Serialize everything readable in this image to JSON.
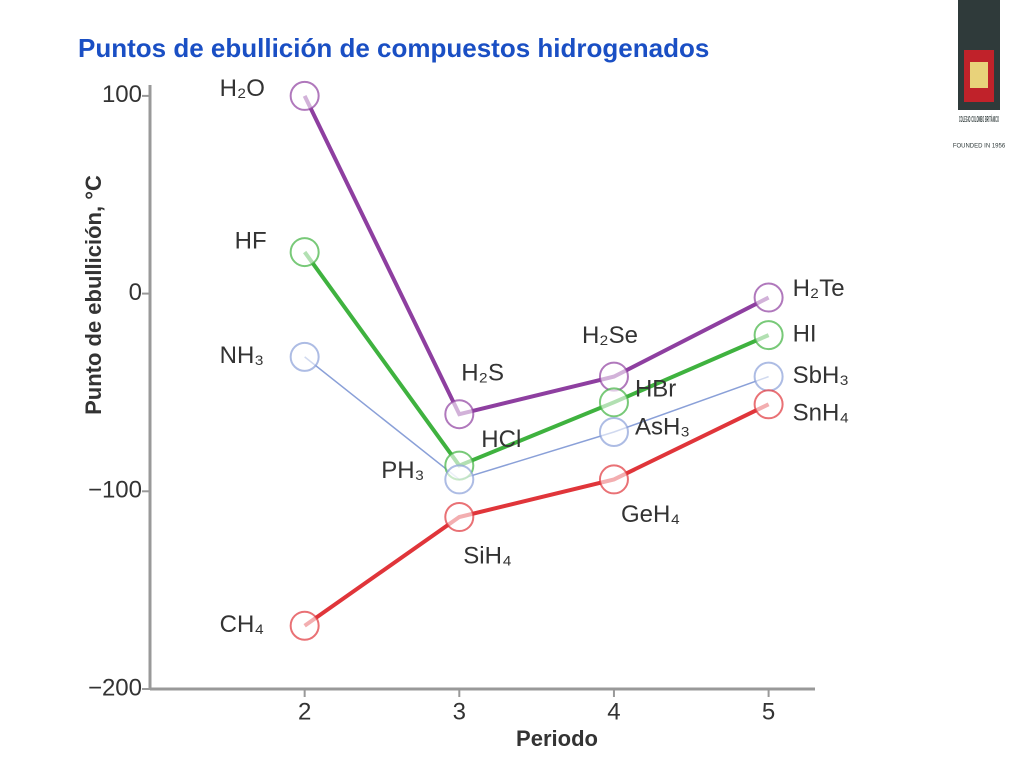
{
  "chart_data": {
    "type": "line",
    "title": "Puntos de ebullición de compuestos hidrogenados",
    "ylabel": "Punto de ebullición, °C",
    "xlabel": "Periodo",
    "x": [
      2,
      3,
      4,
      5
    ],
    "xlim": [
      1,
      5.3
    ],
    "xticks": [
      2,
      3,
      4,
      5
    ],
    "ylim": [
      -200,
      105
    ],
    "yticks": [
      100,
      0,
      {
        "value": -100,
        "label": "−100"
      },
      {
        "value": -200,
        "label": "−200"
      }
    ],
    "series": [
      {
        "color": "#8e3fa0",
        "values": [
          100,
          -61,
          -42,
          -2
        ],
        "labels": [
          "H₂O",
          "H₂S",
          "H₂Se",
          "H₂Te"
        ]
      },
      {
        "color": "#3fb23f",
        "values": [
          21,
          -87,
          -55,
          -21
        ],
        "labels": [
          "HF",
          "HCl",
          "HBr",
          "HI"
        ]
      },
      {
        "color": "#8aa0d8",
        "values": [
          -32,
          -94,
          -70,
          -42
        ],
        "labels": [
          "NH₃",
          "PH₃",
          "AsH₃",
          "SbH₃"
        ]
      },
      {
        "color": "#e0353a",
        "values": [
          -168,
          -113,
          -94,
          -56
        ],
        "labels": [
          "CH₄",
          "SiH₄",
          "GeH₄",
          "SnH₄"
        ]
      }
    ]
  },
  "logo": {
    "name": "COLEGIO COLOMBO BRITÁNICO",
    "founded": "FOUNDED IN 1956"
  }
}
